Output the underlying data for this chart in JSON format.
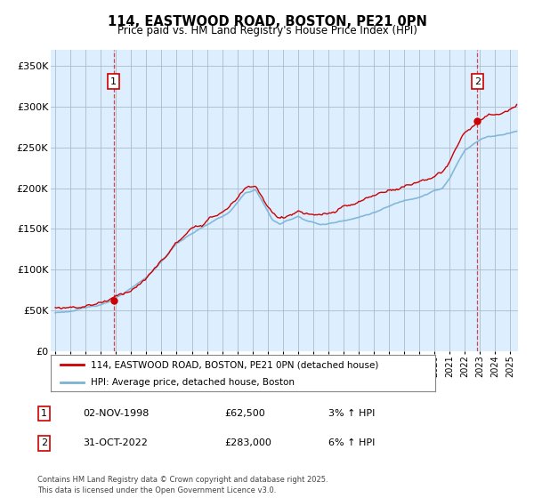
{
  "title": "114, EASTWOOD ROAD, BOSTON, PE21 0PN",
  "subtitle": "Price paid vs. HM Land Registry's House Price Index (HPI)",
  "ylabel_ticks": [
    "£0",
    "£50K",
    "£100K",
    "£150K",
    "£200K",
    "£250K",
    "£300K",
    "£350K"
  ],
  "ytick_values": [
    0,
    50000,
    100000,
    150000,
    200000,
    250000,
    300000,
    350000
  ],
  "ylim": [
    0,
    370000
  ],
  "xlim_start": 1994.7,
  "xlim_end": 2025.5,
  "sale1_x": 1998.84,
  "sale1_y": 62500,
  "sale1_label": "1",
  "sale2_x": 2022.83,
  "sale2_y": 283000,
  "sale2_label": "2",
  "hpi_color": "#7ab3d4",
  "price_color": "#cc0000",
  "marker_color": "#cc0000",
  "chart_bg_color": "#ddeeff",
  "background_color": "#ffffff",
  "grid_color": "#aabbcc",
  "legend_line1": "114, EASTWOOD ROAD, BOSTON, PE21 0PN (detached house)",
  "legend_line2": "HPI: Average price, detached house, Boston",
  "annotation1_date": "02-NOV-1998",
  "annotation1_price": "£62,500",
  "annotation1_hpi": "3% ↑ HPI",
  "annotation2_date": "31-OCT-2022",
  "annotation2_price": "£283,000",
  "annotation2_hpi": "6% ↑ HPI",
  "footnote": "Contains HM Land Registry data © Crown copyright and database right 2025.\nThis data is licensed under the Open Government Licence v3.0."
}
